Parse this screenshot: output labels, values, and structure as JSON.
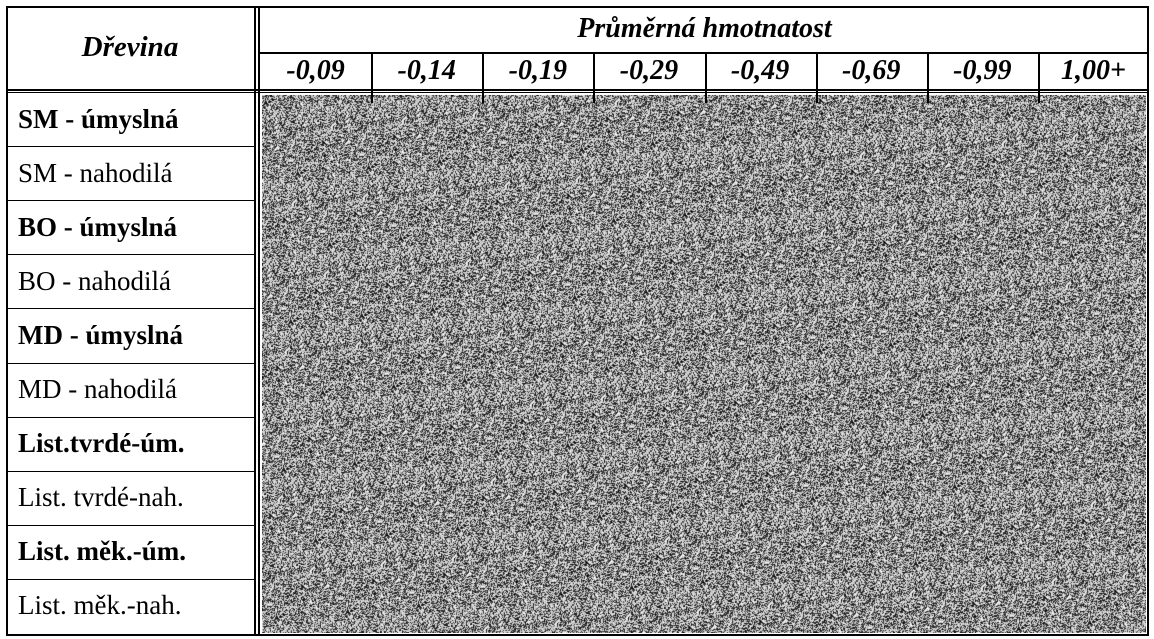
{
  "table": {
    "corner_header": "Dřevina",
    "group_header": "Průměrná hmotnatost",
    "columns": [
      "-0,09",
      "-0,14",
      "-0,19",
      "-0,29",
      "-0,49",
      "-0,69",
      "-0,99",
      "1,00+"
    ],
    "rows": [
      {
        "label": "SM - úmyslná",
        "bold": true
      },
      {
        "label": "SM - nahodilá",
        "bold": false
      },
      {
        "label": "BO - úmyslná",
        "bold": true
      },
      {
        "label": "BO - nahodilá",
        "bold": false
      },
      {
        "label": "MD - úmyslná",
        "bold": true
      },
      {
        "label": "MD - nahodilá",
        "bold": false
      },
      {
        "label": "List.tvrdé-úm.",
        "bold": true
      },
      {
        "label": "List. tvrdé-nah.",
        "bold": false
      },
      {
        "label": "List. měk.-úm.",
        "bold": true
      },
      {
        "label": "List. měk.-nah.",
        "bold": false
      }
    ]
  }
}
